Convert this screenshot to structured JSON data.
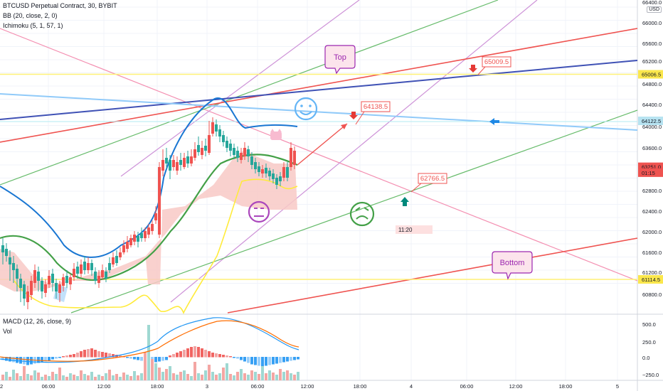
{
  "header": {
    "symbol_line": "BTCUSD Perpetual Contract, 30, BYBIT",
    "indicator_bb": "BB (20, close, 2, 0)",
    "indicator_ichimoku": "Ichimoku (5, 1, 57, 1)",
    "indicator_macd": "MACD (12, 26, close, 9)",
    "indicator_vol": "Vol",
    "currency_button": "USD"
  },
  "chart_data": {
    "type": "candlestick",
    "price_axis": {
      "ticks": [
        "65600.0",
        "65200.0",
        "64800.0",
        "64400.0",
        "64000.0",
        "63600.0",
        "62800.0",
        "62400.0",
        "62000.0",
        "61600.0",
        "61200.0",
        "60800.0"
      ],
      "top_label": "66400.0",
      "top_label2": "66000.0"
    },
    "price_tags": [
      {
        "label": "65006.5",
        "value": 65006.5,
        "color": "#fbe74c",
        "text_color": "#131722"
      },
      {
        "label": "64122.5",
        "value": 64122.5,
        "color": "#b7e3f1",
        "text_color": "#131722"
      },
      {
        "label": "63251.0",
        "value": 63251.0,
        "color": "#ef5350",
        "text_color": "#ffffff"
      },
      {
        "label": "01:15",
        "value": 63140,
        "color": "#ef5350",
        "text_color": "#ffffff"
      },
      {
        "label": "61114.5",
        "value": 61114.5,
        "color": "#fbe74c",
        "text_color": "#131722"
      }
    ],
    "time_axis": [
      "2",
      "06:00",
      "12:00",
      "18:00",
      "3",
      "06:00",
      "12:00",
      "18:00",
      "4",
      "06:00",
      "12:00",
      "18:00",
      "5"
    ],
    "annotations": {
      "top": "Top",
      "bottom": "Bottom",
      "target1": "64138.5",
      "target2": "65009.5",
      "target3": "62766.5",
      "time_box": "11:20"
    },
    "macd_axis": [
      "500.0",
      "250.0",
      "0.0",
      "−250.0"
    ],
    "colors": {
      "bull": "#26a69a",
      "bear": "#ef5350",
      "bb_upper": "#1976d2",
      "bb_lower": "#1976d2",
      "bb_basis": "#43a047",
      "ichimoku_yellow": "#ffeb3b",
      "cloud": "#f8c9c6",
      "macd": "#2196f3",
      "signal": "#ff6d00"
    }
  }
}
